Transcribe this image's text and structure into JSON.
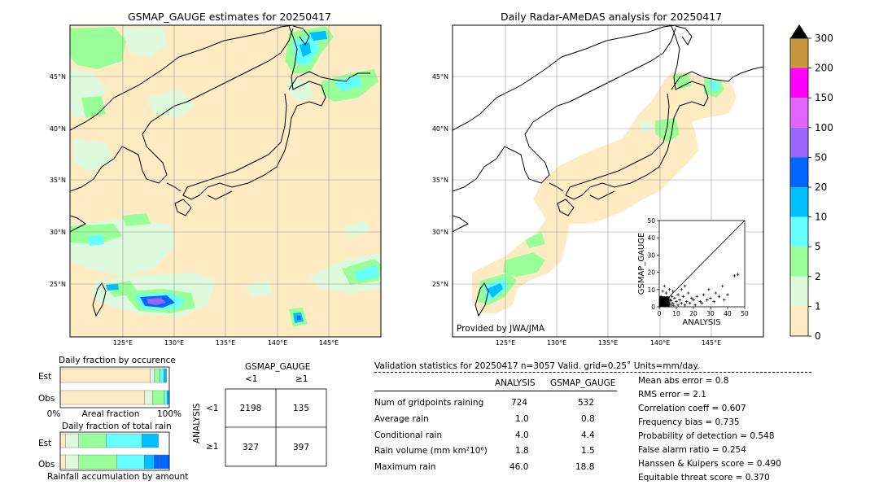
{
  "left_map": {
    "title": "GSMAP_GAUGE estimates for 20250417",
    "lat_labels": [
      "45°N",
      "40°N",
      "35°N",
      "30°N",
      "25°N"
    ],
    "lon_labels": [
      "125°E",
      "130°E",
      "135°E",
      "140°E",
      "145°E"
    ]
  },
  "right_map": {
    "title": "Daily Radar-AMeDAS analysis for 20250417",
    "lat_labels": [
      "45°N",
      "40°N",
      "35°N",
      "30°N",
      "25°N"
    ],
    "lon_labels": [
      "125°E",
      "130°E",
      "135°E",
      "140°E",
      "145°E"
    ],
    "credit": "Provided by JWA/JMA"
  },
  "colorbar": {
    "ticks": [
      "300",
      "200",
      "150",
      "100",
      "50",
      "20",
      "10",
      "5",
      "2",
      "1",
      "0"
    ],
    "colors": [
      "#c8963c",
      "#ff00ff",
      "#e066ff",
      "#9966ff",
      "#0066ff",
      "#00bfff",
      "#66ffff",
      "#99ff99",
      "#ddfadd",
      "#feebc3"
    ],
    "over_color": "#000000"
  },
  "chart_data": [
    {
      "type": "scatter",
      "title": "",
      "xlabel": "ANALYSIS",
      "ylabel": "GSMAP_GAUGE",
      "xlim": [
        0,
        50
      ],
      "ylim": [
        0,
        50
      ],
      "xticks": [
        "0",
        "10",
        "20",
        "30",
        "40",
        "50"
      ],
      "yticks": [
        "0",
        "10",
        "20",
        "30",
        "40",
        "50"
      ],
      "diagonal": true,
      "points": [
        [
          0.5,
          0.5
        ],
        [
          1,
          0.8
        ],
        [
          1.5,
          2
        ],
        [
          2,
          1
        ],
        [
          2.5,
          3
        ],
        [
          3,
          0.5
        ],
        [
          3.5,
          2
        ],
        [
          4,
          5
        ],
        [
          4.5,
          1
        ],
        [
          5,
          3
        ],
        [
          5.5,
          0.5
        ],
        [
          6,
          2
        ],
        [
          6.5,
          4
        ],
        [
          7,
          1
        ],
        [
          7.5,
          6
        ],
        [
          8,
          2
        ],
        [
          8.5,
          0.8
        ],
        [
          9,
          5
        ],
        [
          10,
          3
        ],
        [
          11,
          1
        ],
        [
          12,
          4
        ],
        [
          13,
          2
        ],
        [
          14,
          6
        ],
        [
          15,
          1
        ],
        [
          16,
          3
        ],
        [
          17,
          8
        ],
        [
          18,
          2
        ],
        [
          19,
          5
        ],
        [
          20,
          4
        ],
        [
          21,
          1
        ],
        [
          22,
          6
        ],
        [
          24,
          3
        ],
        [
          25,
          2
        ],
        [
          26,
          7
        ],
        [
          28,
          4
        ],
        [
          29,
          10
        ],
        [
          30,
          5
        ],
        [
          32,
          3
        ],
        [
          33,
          8
        ],
        [
          35,
          6
        ],
        [
          37,
          12
        ],
        [
          38,
          4
        ],
        [
          40,
          7
        ],
        [
          44,
          18
        ],
        [
          46,
          18.8
        ],
        [
          1,
          6
        ],
        [
          2,
          9
        ],
        [
          3,
          12
        ],
        [
          4,
          8
        ],
        [
          6,
          10
        ],
        [
          8,
          9
        ],
        [
          11,
          7
        ],
        [
          13,
          10
        ],
        [
          15,
          12
        ],
        [
          1,
          4
        ],
        [
          2,
          2.5
        ],
        [
          0.8,
          1.5
        ],
        [
          3,
          4
        ],
        [
          5,
          1.5
        ],
        [
          7,
          3.5
        ]
      ],
      "dense_cluster": {
        "x_max": 6,
        "y_max": 6
      }
    },
    {
      "type": "bar",
      "title": "Daily fraction by occurence",
      "rows": [
        "Est",
        "Obs"
      ],
      "xlabel_left": "0%",
      "xlabel_mid": "Areal fraction",
      "xlabel_right": "100%",
      "series": [
        {
          "row": "Est",
          "fractions": [
            0.825,
            0.04,
            0.05,
            0.035,
            0.025
          ],
          "colors": [
            "#feebc3",
            "#ddfadd",
            "#99ff99",
            "#66ffff",
            "#00bfff"
          ]
        },
        {
          "row": "Obs",
          "fractions": [
            0.775,
            0.07,
            0.11,
            0.025,
            0.02
          ],
          "colors": [
            "#feebc3",
            "#ddfadd",
            "#99ff99",
            "#66ffff",
            "#00bfff"
          ]
        }
      ]
    },
    {
      "type": "bar",
      "title": "Daily fraction of total rain",
      "rows": [
        "Est",
        "Obs"
      ],
      "xlabel": "Rainfall accumulation by amount",
      "series": [
        {
          "row": "Est",
          "fractions": [
            0.05,
            0.12,
            0.25,
            0.33,
            0.15
          ],
          "colors": [
            "#feebc3",
            "#ddfadd",
            "#99ff99",
            "#66ffff",
            "#00bfff"
          ]
        },
        {
          "row": "Obs",
          "fractions": [
            0.05,
            0.12,
            0.35,
            0.25,
            0.09,
            0.05,
            0.09
          ],
          "colors": [
            "#feebc3",
            "#ddfadd",
            "#99ff99",
            "#66ffff",
            "#00bfff",
            "#0066ff",
            "#0066ff"
          ]
        }
      ]
    }
  ],
  "contingency": {
    "header": "GSMAP_GAUGE",
    "col_labels": [
      "<1",
      "≥1"
    ],
    "row_axis": "ANALYSIS",
    "row_labels": [
      "<1",
      "≥1"
    ],
    "cells": [
      [
        "2198",
        "135"
      ],
      [
        "327",
        "397"
      ]
    ]
  },
  "validation": {
    "header": "Validation statistics for 20250417  n=3057 Valid. grid=0.25˚ Units=mm/day.",
    "col_analysis": "ANALYSIS",
    "col_gsmap": "GSMAP_GAUGE",
    "rows": [
      {
        "label": "Num of gridpoints raining",
        "analysis": "724",
        "gsmap": "532"
      },
      {
        "label": "Average rain",
        "analysis": "1.0",
        "gsmap": "0.8"
      },
      {
        "label": "Conditional rain",
        "analysis": "4.0",
        "gsmap": "4.4"
      },
      {
        "label": "Rain volume (mm km²10⁶)",
        "analysis": "1.8",
        "gsmap": "1.5"
      },
      {
        "label": "Maximum rain",
        "analysis": "46.0",
        "gsmap": "18.8"
      }
    ],
    "scores": [
      "Mean abs error =    0.8",
      "RMS error =    2.1",
      "Correlation coeff =  0.607",
      "Frequency bias =  0.735",
      "Probability of detection =  0.548",
      "False alarm ratio =  0.254",
      "Hanssen & Kuipers score =  0.490",
      "Equitable threat score =  0.370"
    ]
  }
}
